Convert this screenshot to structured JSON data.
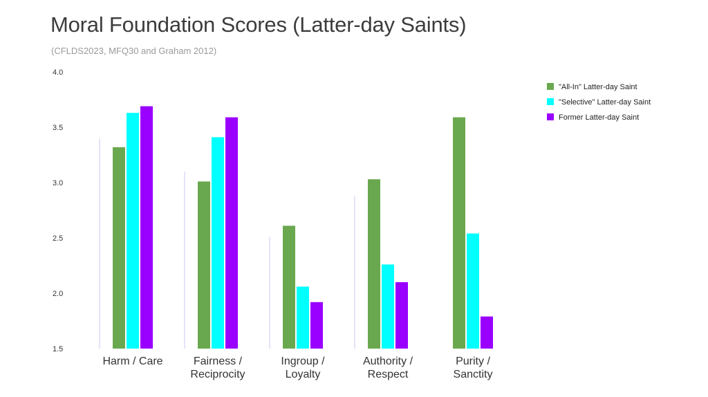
{
  "chart_data": {
    "type": "bar",
    "title": "Moral Foundation Scores (Latter-day Saints)",
    "subtitle": "(CFLDS2023, MFQ30 and Graham 2012)",
    "xlabel": "",
    "ylabel": "",
    "ylim": [
      1.5,
      4.0
    ],
    "yticks": [
      "1.5",
      "2.0",
      "2.5",
      "3.0",
      "3.5",
      "4.0"
    ],
    "grid": false,
    "legend_position": "top-right",
    "categories": [
      [
        "Harm / Care"
      ],
      [
        "Fairness /",
        "Reciprocity"
      ],
      [
        "Ingroup /",
        "Loyalty"
      ],
      [
        "Authority /",
        "Respect"
      ],
      [
        "Purity /",
        "Sanctity"
      ]
    ],
    "series": [
      {
        "name": "\"All-In\" Latter-day Saint",
        "color": "#6aa84f",
        "values": [
          3.32,
          3.01,
          2.61,
          3.03,
          3.59
        ]
      },
      {
        "name": "\"Selective\" Latter-day Saint",
        "color": "#00ffff",
        "values": [
          3.63,
          3.41,
          2.06,
          2.26,
          2.54
        ]
      },
      {
        "name": "Former Latter-day Saint",
        "color": "#9900ff",
        "values": [
          3.69,
          3.59,
          1.92,
          2.1,
          1.79
        ]
      }
    ],
    "reference_lines": [
      3.4,
      3.1,
      2.51,
      2.88,
      null
    ]
  }
}
